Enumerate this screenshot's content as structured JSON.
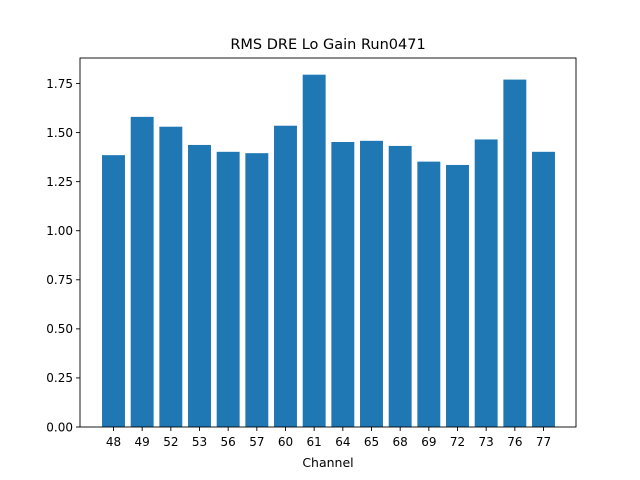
{
  "chart_data": {
    "type": "bar",
    "title": "RMS DRE Lo Gain Run0471",
    "xlabel": "Channel",
    "ylabel": "",
    "categories": [
      "48",
      "49",
      "52",
      "53",
      "56",
      "57",
      "60",
      "61",
      "64",
      "65",
      "68",
      "69",
      "72",
      "73",
      "76",
      "77"
    ],
    "values": [
      1.385,
      1.58,
      1.53,
      1.437,
      1.402,
      1.395,
      1.535,
      1.795,
      1.452,
      1.458,
      1.432,
      1.352,
      1.335,
      1.465,
      1.77,
      1.402
    ],
    "ylim": [
      0,
      1.88
    ],
    "yticks": [
      "0.00",
      "0.25",
      "0.50",
      "0.75",
      "1.00",
      "1.25",
      "1.50",
      "1.75"
    ],
    "bar_color": "#1f77b4",
    "grid": false,
    "legend": "none"
  }
}
